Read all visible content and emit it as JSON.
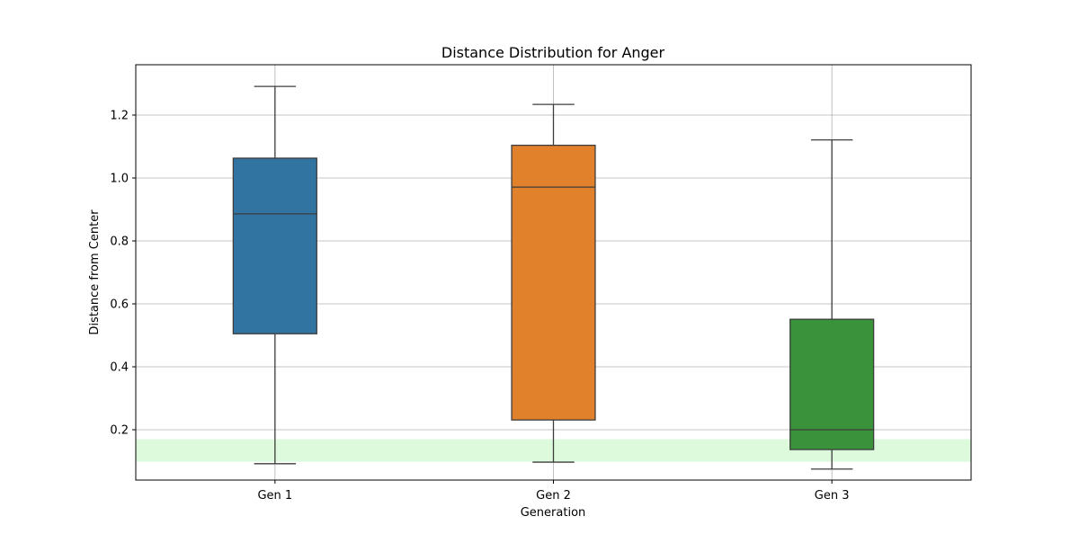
{
  "chart_data": {
    "type": "box",
    "title": "Distance Distribution for Anger",
    "xlabel": "Generation",
    "ylabel": "Distance from Center",
    "categories": [
      "Gen 1",
      "Gen 2",
      "Gen 3"
    ],
    "ylim": [
      0.04,
      1.36
    ],
    "yticks": [
      0.2,
      0.4,
      0.6,
      0.8,
      1.0,
      1.2
    ],
    "ytick_labels": [
      "0.2",
      "0.4",
      "0.6",
      "0.8",
      "1.0",
      "1.2"
    ],
    "grid": true,
    "boxes": [
      {
        "category": "Gen 1",
        "whisker_low": 0.092,
        "q1": 0.505,
        "median": 0.886,
        "q3": 1.063,
        "whisker_high": 1.291,
        "color": "#3274a1"
      },
      {
        "category": "Gen 2",
        "whisker_low": 0.097,
        "q1": 0.231,
        "median": 0.971,
        "q3": 1.104,
        "whisker_high": 1.234,
        "color": "#e1812c"
      },
      {
        "category": "Gen 3",
        "whisker_low": 0.075,
        "q1": 0.137,
        "median": 0.2,
        "q3": 0.551,
        "whisker_high": 1.121,
        "color": "#3a923a"
      }
    ],
    "shaded_band": {
      "y_from": 0.098,
      "y_to": 0.17,
      "color": "#90ee90"
    }
  }
}
